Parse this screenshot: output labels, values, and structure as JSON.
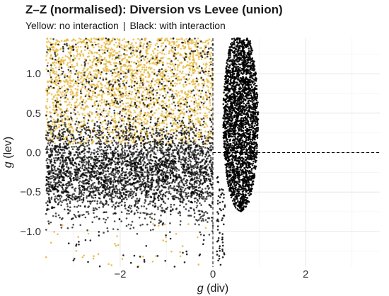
{
  "chart_data": {
    "type": "scatter",
    "title": "Z–Z (normalised): Diversion vs Levee (union)",
    "subtitle": {
      "yellow_label": "Yellow: no interaction",
      "separator": "|",
      "black_label": "Black: with interaction"
    },
    "xlabel": {
      "italic": "g",
      "rest": " (div)"
    },
    "ylabel": {
      "italic": "g",
      "rest": " (lev)"
    },
    "xlim": [
      -3.6,
      3.6
    ],
    "ylim": [
      -1.45,
      1.45
    ],
    "x_ticks": [
      -2,
      0,
      2
    ],
    "x_tick_labels": [
      "−2",
      "0",
      "2"
    ],
    "y_ticks": [
      -1.0,
      -0.5,
      0.0,
      0.5,
      1.0
    ],
    "y_tick_labels": [
      "−1.0",
      "−0.5",
      "0.0",
      "0.5",
      "1.0"
    ],
    "reference_lines": {
      "vertical_x": 0,
      "horizontal_y": 0,
      "style": "dashed"
    },
    "grid": true,
    "legend": "subtitle",
    "series": [
      {
        "name": "no interaction",
        "color": "#E6B432",
        "regions": [
          {
            "x_range": [
              -3.6,
              0
            ],
            "y_range": [
              0.1,
              1.45
            ],
            "density": "high"
          },
          {
            "x_range": [
              -3.6,
              0
            ],
            "y_range": [
              -1.45,
              -0.9
            ],
            "density": "sparse"
          }
        ]
      },
      {
        "name": "with interaction",
        "color": "#000000",
        "regions": [
          {
            "x_range": [
              -3.6,
              0
            ],
            "y_range": [
              -0.95,
              0.45
            ],
            "density": "high"
          },
          {
            "x_range": [
              -3.6,
              0
            ],
            "y_range": [
              0.45,
              1.45
            ],
            "density": "medium"
          },
          {
            "x_range": [
              0.1,
              1.05
            ],
            "y_range": [
              -0.8,
              1.45
            ],
            "shape": "ellipse",
            "center": [
              0.6,
              0.45
            ],
            "density": "very high"
          },
          {
            "x_range": [
              0.05,
              0.25
            ],
            "y_range": [
              -1.45,
              -0.4
            ],
            "density": "sparse"
          }
        ]
      }
    ]
  }
}
